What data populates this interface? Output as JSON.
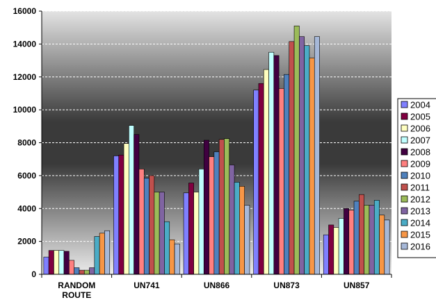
{
  "chart_data": {
    "type": "bar",
    "title": "",
    "xlabel": "",
    "ylabel": "",
    "ylim": [
      0,
      16000
    ],
    "yticks": [
      "0",
      "2000",
      "4000",
      "6000",
      "8000",
      "10000",
      "12000",
      "14000",
      "16000"
    ],
    "grid": true,
    "legend_position": "right",
    "categories": [
      {
        "lines": [
          "RANDOM",
          "ROUTE"
        ]
      },
      {
        "lines": [
          "UN741"
        ]
      },
      {
        "lines": [
          "UN866"
        ]
      },
      {
        "lines": [
          "UN873"
        ]
      },
      {
        "lines": [
          "UN857"
        ]
      }
    ],
    "series": [
      {
        "name": "2004",
        "color": "#8080ff",
        "values": [
          1050,
          7200,
          4950,
          11200,
          2400
        ]
      },
      {
        "name": "2005",
        "color": "#800040",
        "values": [
          1450,
          7250,
          5550,
          11600,
          3000
        ]
      },
      {
        "name": "2006",
        "color": "#ffffc0",
        "values": [
          1450,
          7950,
          5000,
          12450,
          2850
        ]
      },
      {
        "name": "2007",
        "color": "#c0ffff",
        "values": [
          1450,
          9050,
          6400,
          13500,
          3400
        ]
      },
      {
        "name": "2008",
        "color": "#400040",
        "values": [
          1400,
          8500,
          8150,
          13300,
          4000
        ]
      },
      {
        "name": "2009",
        "color": "#ff8080",
        "values": [
          850,
          6400,
          7150,
          11300,
          3900
        ]
      },
      {
        "name": "2010",
        "color": "#4f81bd",
        "values": [
          400,
          5850,
          7450,
          12150,
          4450
        ]
      },
      {
        "name": "2011",
        "color": "#c0504d",
        "values": [
          250,
          6000,
          8200,
          14150,
          4850
        ]
      },
      {
        "name": "2012",
        "color": "#9bbb59",
        "values": [
          250,
          5000,
          8250,
          15100,
          4200
        ]
      },
      {
        "name": "2013",
        "color": "#8064a2",
        "values": [
          400,
          5000,
          6650,
          14450,
          4200
        ]
      },
      {
        "name": "2014",
        "color": "#4bacc6",
        "values": [
          2300,
          3200,
          5600,
          13900,
          4500
        ]
      },
      {
        "name": "2015",
        "color": "#f79646",
        "values": [
          2500,
          2100,
          5350,
          13150,
          3600
        ]
      },
      {
        "name": "2016",
        "color": "#a6b8d8",
        "values": [
          2650,
          1850,
          4200,
          14450,
          3300
        ]
      }
    ]
  }
}
